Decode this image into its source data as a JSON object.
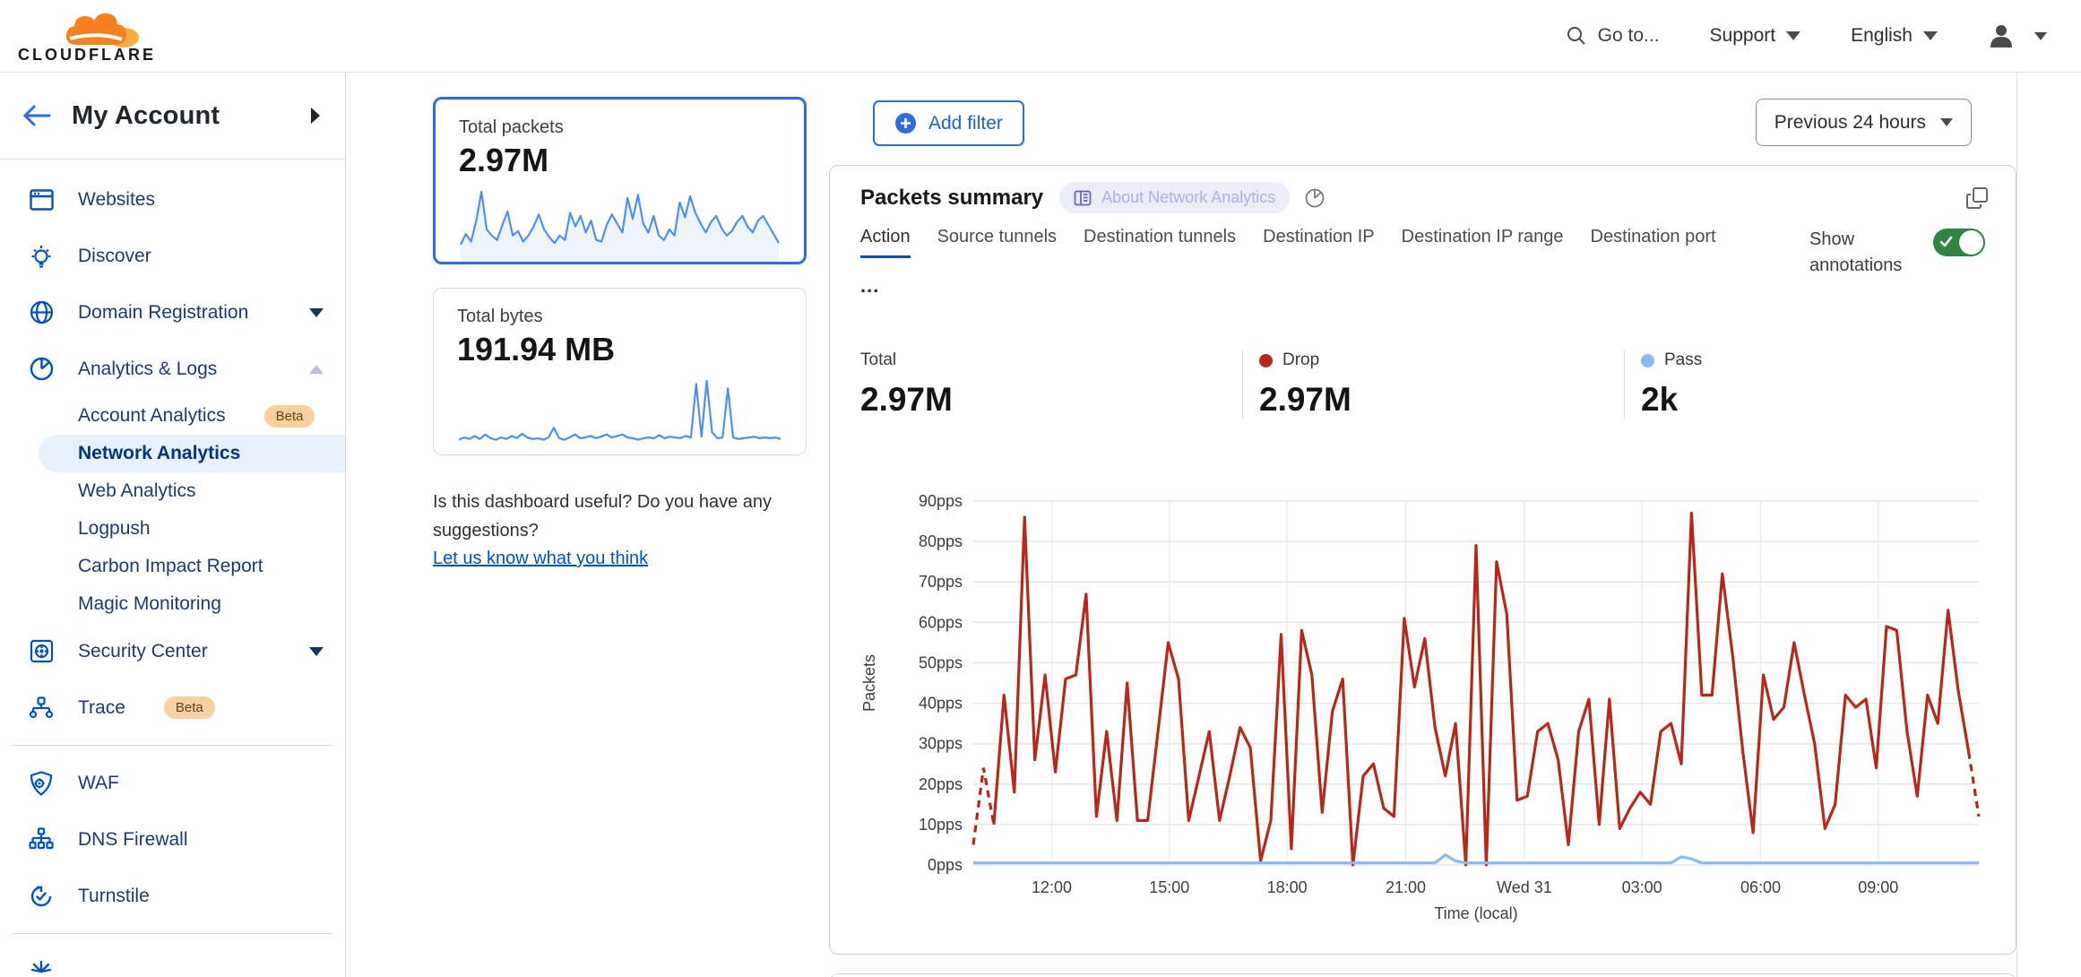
{
  "header": {
    "brand": "CLOUDFLARE",
    "goto": "Go to...",
    "support": "Support",
    "language": "English"
  },
  "sidebar": {
    "account_label": "My Account",
    "items": [
      {
        "label": "Websites",
        "icon": "browser-window"
      },
      {
        "label": "Discover",
        "icon": "lightbulb"
      },
      {
        "label": "Domain Registration",
        "icon": "globe",
        "chevron": "down"
      },
      {
        "label": "Analytics & Logs",
        "icon": "pie-chart",
        "chevron": "up"
      },
      {
        "label": "Account Analytics",
        "sub": true,
        "badge": "Beta"
      },
      {
        "label": "Network Analytics",
        "sub": true,
        "selected": true
      },
      {
        "label": "Web Analytics",
        "sub": true
      },
      {
        "label": "Logpush",
        "sub": true
      },
      {
        "label": "Carbon Impact Report",
        "sub": true
      },
      {
        "label": "Magic Monitoring",
        "sub": true
      },
      {
        "label": "Security Center",
        "icon": "vault",
        "chevron": "down"
      },
      {
        "label": "Trace",
        "icon": "network-nodes",
        "badge": "Beta"
      },
      {
        "label": "WAF",
        "icon": "shield-gear"
      },
      {
        "label": "DNS Firewall",
        "icon": "dns-tree"
      },
      {
        "label": "Turnstile",
        "icon": "rotate-check"
      }
    ]
  },
  "middle": {
    "cards": [
      {
        "title": "Total packets",
        "value": "2.97M"
      },
      {
        "title": "Total bytes",
        "value": "191.94 MB"
      }
    ],
    "feedback_text": "Is this dashboard useful? Do you have any suggestions?",
    "feedback_link": "Let us know what you think"
  },
  "main": {
    "add_filter": "Add filter",
    "time_range": "Previous 24 hours",
    "panel_title": "Packets summary",
    "about_badge": "About Network Analytics",
    "tabs": [
      "Action",
      "Source tunnels",
      "Destination tunnels",
      "Destination IP",
      "Destination IP range",
      "Destination port"
    ],
    "tabs_overflow": "...",
    "show_annotations": "Show annotations",
    "stats": [
      {
        "label": "Total",
        "value": "2.97M",
        "dot": null
      },
      {
        "label": "Drop",
        "value": "2.97M",
        "dot": "#b7271a"
      },
      {
        "label": "Pass",
        "value": "2k",
        "dot": "#8ab9f7"
      }
    ]
  },
  "colors": {
    "accent_blue": "#0051c3",
    "selected_nav_bg": "#e8f0fc",
    "selected_nav_text": "#003681",
    "drop_red": "#b7271a",
    "pass_blue": "#8ab9f7",
    "toggle_green": "#2e8540",
    "beta_badge_bg": "#fbd0a0",
    "spark_blue": "#4d8ef5",
    "logo_orange": "#f6821f",
    "logo_light_orange": "#fbad41"
  },
  "chart_data": [
    {
      "id": "packets-summary",
      "type": "line",
      "title": "Packets summary",
      "xlabel": "Time (local)",
      "ylabel": "Packets",
      "ylim": [
        0,
        90
      ],
      "ytick_step": 10,
      "ytick_suffix": "pps",
      "grid": true,
      "xticks": [
        {
          "label": "12:00",
          "pos": 0.078
        },
        {
          "label": "15:00",
          "pos": 0.195
        },
        {
          "label": "18:00",
          "pos": 0.312
        },
        {
          "label": "21:00",
          "pos": 0.43
        },
        {
          "label": "Wed 31",
          "pos": 0.548
        },
        {
          "label": "03:00",
          "pos": 0.665
        },
        {
          "label": "06:00",
          "pos": 0.783
        },
        {
          "label": "09:00",
          "pos": 0.9
        }
      ],
      "series": [
        {
          "name": "Drop",
          "color": "#b7271a",
          "dash_head": 2,
          "dash_tail": 1,
          "values": [
            5,
            24,
            10,
            42,
            18,
            86,
            26,
            47,
            23,
            46,
            47,
            67,
            12,
            33,
            11,
            45,
            11,
            11,
            33,
            55,
            46,
            11,
            22,
            33,
            11,
            22,
            34,
            29,
            1,
            11,
            57,
            4,
            58,
            47,
            13,
            38,
            46,
            0,
            22,
            25,
            14,
            12,
            61,
            44,
            56,
            34,
            22,
            35,
            0,
            79,
            0,
            75,
            62,
            16,
            17,
            33,
            35,
            26,
            5,
            33,
            41,
            10,
            41,
            9,
            14,
            18,
            15,
            33,
            35,
            25,
            87,
            42,
            42,
            72,
            52,
            28,
            8,
            47,
            36,
            39,
            55,
            42,
            30,
            9,
            15,
            42,
            39,
            41,
            24,
            59,
            58,
            33,
            17,
            42,
            35,
            63,
            43,
            28,
            12
          ]
        },
        {
          "name": "Pass",
          "color": "#8ab9f7",
          "values": [
            0.5,
            0.5,
            0.5,
            0.5,
            0.5,
            0.5,
            0.5,
            0.5,
            0.5,
            0.5,
            0.5,
            0.5,
            0.5,
            0.5,
            0.5,
            0.5,
            0.5,
            0.5,
            0.5,
            0.5,
            0.5,
            0.5,
            0.5,
            0.5,
            0.5,
            0.5,
            0.5,
            0.5,
            0.5,
            0.5,
            0.5,
            0.5,
            0.5,
            0.5,
            0.5,
            0.5,
            0.5,
            0.5,
            0.5,
            0.5,
            0.5,
            0.5,
            0.5,
            0.5,
            0.5,
            0.5,
            2.5,
            1,
            0.5,
            0.5,
            0.5,
            0.5,
            0.5,
            0.5,
            0.5,
            0.5,
            0.5,
            0.5,
            0.5,
            0.5,
            0.5,
            0.5,
            0.5,
            0.5,
            0.5,
            0.5,
            0.5,
            0.5,
            0.5,
            2,
            1.5,
            0.5,
            0.5,
            0.5,
            0.5,
            0.5,
            0.5,
            0.5,
            0.5,
            0.5,
            0.5,
            0.5,
            0.5,
            0.5,
            0.5,
            0.5,
            0.5,
            0.5,
            0.5,
            0.5,
            0.5,
            0.5,
            0.5,
            0.5,
            0.5,
            0.5,
            0.5,
            0.5,
            0.5
          ]
        }
      ]
    },
    {
      "id": "total-packets-spark",
      "type": "line",
      "color": "#4d8ef5",
      "area": true,
      "values": [
        18,
        32,
        22,
        50,
        88,
        38,
        30,
        24,
        44,
        62,
        30,
        36,
        22,
        30,
        42,
        58,
        38,
        28,
        20,
        30,
        24,
        60,
        42,
        56,
        34,
        50,
        24,
        22,
        44,
        58,
        46,
        34,
        80,
        52,
        84,
        46,
        34,
        56,
        30,
        24,
        38,
        30,
        74,
        54,
        82,
        60,
        46,
        34,
        48,
        56,
        40,
        30,
        36,
        48,
        56,
        42,
        34,
        50,
        56,
        44,
        32,
        20
      ]
    },
    {
      "id": "total-bytes-spark",
      "type": "line",
      "color": "#4d8ef5",
      "area": false,
      "values": [
        10,
        13,
        11,
        15,
        11,
        17,
        12,
        10,
        13,
        11,
        15,
        12,
        18,
        13,
        11,
        12,
        10,
        13,
        26,
        12,
        10,
        13,
        17,
        12,
        13,
        15,
        12,
        14,
        17,
        13,
        15,
        17,
        13,
        12,
        10,
        12,
        13,
        12,
        16,
        12,
        14,
        13,
        12,
        15,
        13,
        84,
        14,
        88,
        20,
        12,
        13,
        78,
        13,
        11,
        12,
        13,
        14,
        12,
        13,
        12,
        13,
        11
      ]
    }
  ]
}
